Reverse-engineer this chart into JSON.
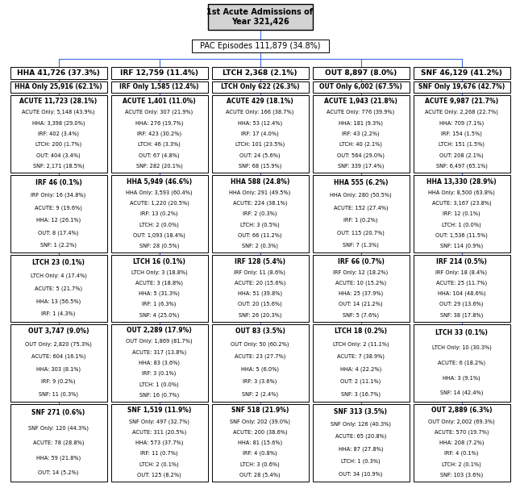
{
  "title_box": "1st Acute Admissions of\nYear 321,426",
  "pac_box": "PAC Episodes 111,879 (34.8%)",
  "columns": [
    {
      "header": "HHA 41,726 (37.3%)",
      "boxes": [
        {
          "title": "HHA Only 25,916 (62.1%)",
          "content": ""
        },
        {
          "title": "ACUTE 11,723 (28.1%)",
          "content": "ACUTE Only: 5,148 (43.9%)\nHHA: 3,398 (29.0%)\nIRF: 402 (3.4%)\nLTCH: 200 (1.7%)\nOUT: 404 (3.4%)\nSNF: 2,171 (18.5%)"
        },
        {
          "title": "IRF 46 (0.1%)",
          "content": "IRF Only: 16 (34.8%)\nACUTE: 9 (19.6%)\nHHA: 12 (26.1%)\nOUT: 8 (17.4%)\nSNF: 1 (2.2%)"
        },
        {
          "title": "LTCH 23 (0.1%)",
          "content": "LTCH Only: 4 (17.4%)\nACUTE: 5 (21.7%)\nHHA: 13 (56.5%)\nIRF: 1 (4.3%)"
        },
        {
          "title": "OUT 3,747 (9.0%)",
          "content": "OUT Only: 2,820 (75.3%)\nACUTE: 604 (16.1%)\nHHA: 303 (8.1%)\nIRF: 9 (0.2%)\nSNF: 11 (0.3%)"
        },
        {
          "title": "SNF 271 (0.6%)",
          "content": "SNF Only: 120 (44.3%)\nACUTE: 78 (28.8%)\nHHA: 59 (21.8%)\nOUT: 14 (5.2%)"
        }
      ]
    },
    {
      "header": "IRF 12,759 (11.4%)",
      "boxes": [
        {
          "title": "IRF Only 1,585 (12.4%)",
          "content": ""
        },
        {
          "title": "ACUTE 1,401 (11.0%)",
          "content": "ACUTE Only: 307 (21.9%)\nHHA: 276 (19.7%)\nIRF: 423 (30.2%)\nLTCH: 46 (3.3%)\nOUT: 67 (4.8%)\nSNF: 282 (20.1%)"
        },
        {
          "title": "HHA 5,949 (46.6%)",
          "content": "HHA Only: 3,593 (60.4%)\nACUTE: 1,220 (20.5%)\nIRF: 13 (0.2%)\nLTCH: 2 (0.0%)\nOUT: 1,093 (18.4%)\nSNF: 28 (0.5%)"
        },
        {
          "title": "LTCH 16 (0.1%)",
          "content": "LTCH Only: 3 (18.8%)\nACUTE: 3 (18.8%)\nHHA: 5 (31.3%)\nIRF: 1 (6.3%)\nSNF: 4 (25.0%)"
        },
        {
          "title": "OUT 2,289 (17.9%)",
          "content": "OUT Only: 1,869 (81.7%)\nACUTE: 317 (13.8%)\nHHA: 83 (3.6%)\nIRF: 3 (0.1%)\nLTCH: 1 (0.0%)\nSNF: 16 (0.7%)"
        },
        {
          "title": "SNF 1,519 (11.9%)",
          "content": "SNF Only: 497 (32.7%)\nACUTE: 311 (20.5%)\nHHA: 573 (37.7%)\nIRF: 11 (0.7%)\nLTCH: 2 (0.1%)\nOUT: 125 (8.2%)"
        }
      ]
    },
    {
      "header": "LTCH 2,368 (2.1%)",
      "boxes": [
        {
          "title": "LTCH Only 622 (26.3%)",
          "content": ""
        },
        {
          "title": "ACUTE 429 (18.1%)",
          "content": "ACUTE Only: 166 (38.7%)\nHHA: 53 (12.4%)\nIRF: 17 (4.0%)\nLTCH: 101 (23.5%)\nOUT: 24 (5.6%)\nSNF: 68 (15.9%)"
        },
        {
          "title": "HHA 588 (24.8%)",
          "content": "HHA Only: 291 (49.5%)\nACUTE: 224 (38.1%)\nIRF: 2 (0.3%)\nLTCH: 3 (0.5%)\nOUT: 66 (11.2%)\nSNF: 2 (0.3%)"
        },
        {
          "title": "IRF 128 (5.4%)",
          "content": "IRF Only: 11 (8.6%)\nACUTE: 20 (15.6%)\nHHA: 51 (39.8%)\nOUT: 20 (15.6%)\nSNF: 26 (20.3%)"
        },
        {
          "title": "OUT 83 (3.5%)",
          "content": "OUT Only: 50 (60.2%)\nACUTE: 23 (27.7%)\nHHA: 5 (6.0%)\nIRF: 3 (3.6%)\nSNF: 2 (2.4%)"
        },
        {
          "title": "SNF 518 (21.9%)",
          "content": "SNF Only: 202 (39.0%)\nACUTE: 200 (38.6%)\nHHA: 81 (15.6%)\nIRF: 4 (0.8%)\nLTCH: 3 (0.6%)\nOUT: 28 (5.4%)"
        }
      ]
    },
    {
      "header": "OUT 8,897 (8.0%)",
      "boxes": [
        {
          "title": "OUT Only 6,002 (67.5%)",
          "content": ""
        },
        {
          "title": "ACUTE 1,943 (21.8%)",
          "content": "ACUTE Only: 776 (39.9%)\nHHA: 181 (9.3%)\nIRF: 43 (2.2%)\nLTCH: 40 (2.1%)\nOUT: 564 (29.0%)\nSNF: 339 (17.4%)"
        },
        {
          "title": "HHA 555 (6.2%)",
          "content": "HHA Only: 280 (50.5%)\nACUTE: 152 (27.4%)\nIRF: 1 (0.2%)\nOUT: 115 (20.7%)\nSNF: 7 (1.3%)"
        },
        {
          "title": "IRF 66 (0.7%)",
          "content": "IRF Only: 12 (18.2%)\nACUTE: 10 (15.2%)\nHHA: 25 (37.9%)\nOUT: 14 (21.2%)\nSNF: 5 (7.6%)"
        },
        {
          "title": "LTCH 18 (0.2%)",
          "content": "LTCH Only: 2 (11.1%)\nACUTE: 7 (38.9%)\nHHA: 4 (22.2%)\nOUT: 2 (11.1%)\nSNF: 3 (16.7%)"
        },
        {
          "title": "SNF 313 (3.5%)",
          "content": "SNF Only: 126 (40.3%)\nACUTE: 65 (20.8%)\nHHA: 87 (27.8%)\nLTCH: 1 (0.3%)\nOUT: 34 (10.9%)"
        }
      ]
    },
    {
      "header": "SNF 46,129 (41.2%)",
      "boxes": [
        {
          "title": "SNF Only 19,676 (42.7%)",
          "content": ""
        },
        {
          "title": "ACUTE 9,987 (21.7%)",
          "content": "ACUTE Only: 2,268 (22.7%)\nHHA: 709 (7.1%)\nIRF: 154 (1.5%)\nLTCH: 151 (1.5%)\nOUT: 208 (2.1%)\nSNF: 6,497 (65.1%)"
        },
        {
          "title": "HHA 13,330 (28.9%)",
          "content": "HHA Only: 8,500 (63.8%)\nACUTE: 3,167 (23.8%)\nIRF: 12 (0.1%)\nLTCH: 1 (0.0%)\nOUT: 1,536 (11.5%)\nSNF: 114 (0.9%)"
        },
        {
          "title": "IRF 214 (0.5%)",
          "content": "IRF Only: 18 (8.4%)\nACUTE: 25 (11.7%)\nHHA: 104 (48.6%)\nOUT: 29 (13.6%)\nSNF: 38 (17.8%)"
        },
        {
          "title": "LTCH 33 (0.1%)",
          "content": "LTCH Only: 10 (30.3%)\nACUTE: 6 (18.2%)\nHHA: 3 (9.1%)\nSNF: 14 (42.4%)"
        },
        {
          "title": "OUT 2,889 (6.3%)",
          "content": "OUT Only: 2,002 (69.3%)\nACUTE: 570 (19.7%)\nHHA: 208 (7.2%)\nIRF: 4 (0.1%)\nLTCH: 2 (0.1%)\nSNF: 103 (3.6%)"
        }
      ]
    }
  ],
  "bg_color": "#ffffff",
  "box_face_color": "#ffffff",
  "box_edge_color": "#000000",
  "header_bg": "#d3d3d3",
  "line_color": "#4169e1",
  "title_fontsize": 5.5,
  "content_fontsize": 4.8,
  "header_fontsize": 6.5
}
